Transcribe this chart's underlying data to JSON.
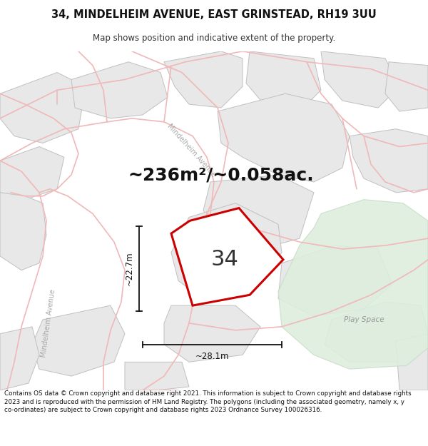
{
  "title_line1": "34, MINDELHEIM AVENUE, EAST GRINSTEAD, RH19 3UU",
  "title_line2": "Map shows position and indicative extent of the property.",
  "area_text": "~236m²/~0.058ac.",
  "number_label": "34",
  "dim_width": "~28.1m",
  "dim_height": "~22.7m",
  "play_space_label": "Play Space",
  "mindelheim_label_left": "Mindelheim Avenue",
  "mindelheim_avenue_diag": "Mindelheim Avenue",
  "footer_text": "Contains OS data © Crown copyright and database right 2021. This information is subject to Crown copyright and database rights 2023 and is reproduced with the permission of HM Land Registry. The polygons (including the associated geometry, namely x, y co-ordinates) are subject to Crown copyright and database rights 2023 Ordnance Survey 100026316.",
  "map_bg": "#ffffff",
  "parcel_fill": "#e8e8e8",
  "parcel_edge": "#c0c0c0",
  "road_line_color": "#f0b8b8",
  "road_line_thin": "#e8a8a8",
  "green_fill": "#ddeedd",
  "green_edge": "#c8ddc8",
  "highlight_color": "#cc0000",
  "label_gray": "#aaaaaa",
  "dim_color": "#111111",
  "text_dark": "#222222"
}
